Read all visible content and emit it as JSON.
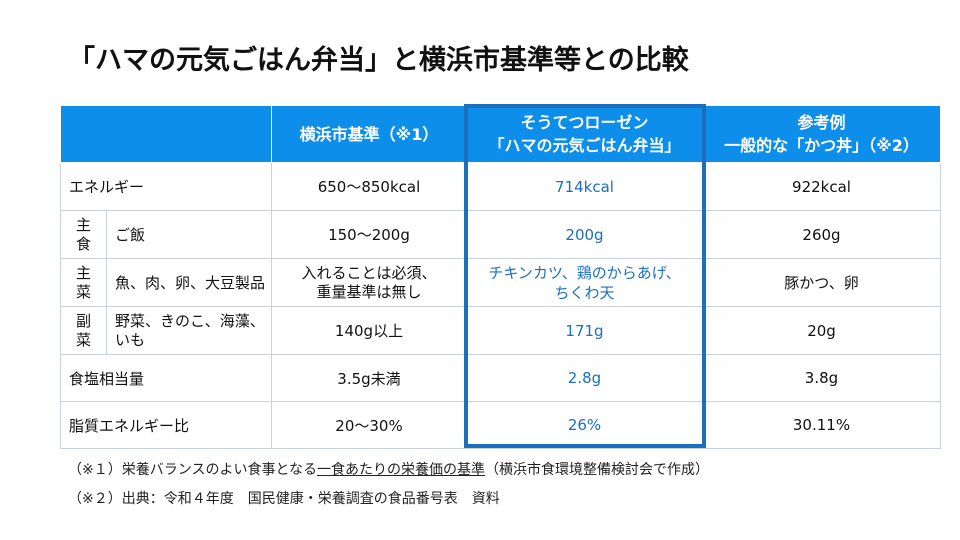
{
  "title": "「ハマの元気ごはん弁当」と横浜市基準等との比較",
  "table": {
    "headers": {
      "col1": "横浜市基準（※1）",
      "col2_line1": "そうてつローゼン",
      "col2_line2": "「ハマの元気ごはん弁当」",
      "col3_line1": "参考例",
      "col3_line2": "一般的な「かつ丼」（※2）"
    },
    "rows": [
      {
        "category": "",
        "label": "エネルギー",
        "yokohama": "650～850kcal",
        "bento": "714kcal",
        "katsudon": "922kcal"
      },
      {
        "category": "主食",
        "label": "ご飯",
        "yokohama": "150～200g",
        "bento": "200g",
        "katsudon": "260g"
      },
      {
        "category": "主菜",
        "label": "魚、肉、卵、大豆製品",
        "yokohama_line1": "入れることは必須、",
        "yokohama_line2": "重量基準は無し",
        "bento_line1": "チキンカツ、鶏のからあげ、",
        "bento_line2": "ちくわ天",
        "katsudon": "豚かつ、卵"
      },
      {
        "category": "副菜",
        "label_line1": "野菜、きのこ、海藻、",
        "label_line2": "いも",
        "yokohama": "140g以上",
        "bento": "171g",
        "katsudon": "20g"
      },
      {
        "category": "",
        "label": "食塩相当量",
        "yokohama": "3.5g未満",
        "bento": "2.8g",
        "katsudon": "3.8g"
      },
      {
        "category": "",
        "label": "脂質エネルギー比",
        "yokohama": "20～30%",
        "bento": "26%",
        "katsudon": "30.11%"
      }
    ]
  },
  "notes": {
    "note1_prefix": "（※１）栄養バランスのよい食事となる",
    "note1_underlined": "一食あたりの栄養価の基準",
    "note1_suffix": "（横浜市食環境整備検討会で作成）",
    "note2": "（※２）出典：令和４年度　国民健康・栄養調査の食品番号表　資料"
  },
  "colors": {
    "header_bg": "#0d8eeb",
    "highlight_border": "#1c6fbd",
    "highlight_text": "#1a6fc4"
  }
}
